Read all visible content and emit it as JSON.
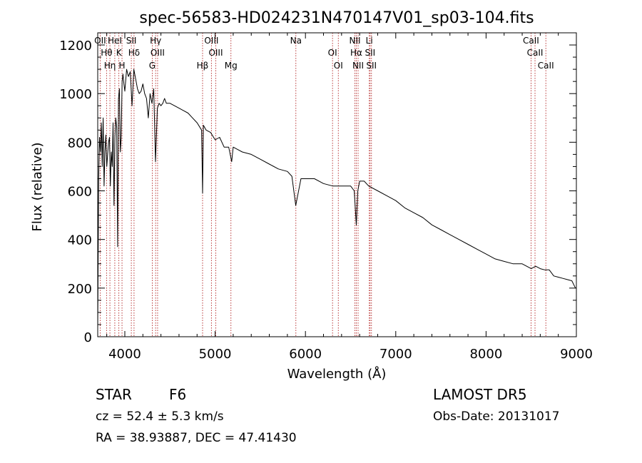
{
  "chart_data": {
    "type": "line",
    "title": "spec-56583-HD024231N470147V01_sp03-104.fits",
    "xlabel": "Wavelength (Å)",
    "ylabel": "Flux (relative)",
    "xlim": [
      3700,
      9000
    ],
    "ylim": [
      0,
      1250
    ],
    "xticks": [
      "4000",
      "5000",
      "6000",
      "7000",
      "8000",
      "9000"
    ],
    "yticks": [
      "0",
      "200",
      "400",
      "600",
      "800",
      "1000",
      "1200"
    ],
    "grid": false,
    "line_color": "#000000",
    "marker_color": "#b22222",
    "series": [
      {
        "x": [
          3700,
          3710,
          3720,
          3730,
          3740,
          3750,
          3760,
          3770,
          3780,
          3790,
          3800,
          3810,
          3820,
          3830,
          3840,
          3850,
          3860,
          3870,
          3880,
          3890,
          3900,
          3910,
          3920,
          3930,
          3940,
          3950,
          3960,
          3970,
          3980,
          3990,
          4000,
          4020,
          4040,
          4060,
          4080,
          4100,
          4120,
          4140,
          4160,
          4180,
          4200,
          4220,
          4240,
          4260,
          4280,
          4300,
          4320,
          4340,
          4360,
          4380,
          4400,
          4420,
          4440,
          4460,
          4480,
          4500,
          4550,
          4600,
          4650,
          4700,
          4750,
          4800,
          4850,
          4861,
          4870,
          4900,
          4950,
          5000,
          5050,
          5100,
          5150,
          5183,
          5200,
          5250,
          5300,
          5400,
          5500,
          5600,
          5700,
          5800,
          5850,
          5893,
          5950,
          6000,
          6100,
          6200,
          6300,
          6400,
          6500,
          6540,
          6563,
          6580,
          6600,
          6650,
          6700,
          6800,
          6900,
          7000,
          7100,
          7200,
          7300,
          7400,
          7500,
          7600,
          7700,
          7800,
          7900,
          8000,
          8100,
          8200,
          8300,
          8400,
          8500,
          8550,
          8600,
          8650,
          8700,
          8750,
          8800,
          8850,
          8900,
          8950,
          8990
        ],
        "y": [
          30,
          650,
          820,
          760,
          880,
          700,
          900,
          620,
          760,
          830,
          700,
          750,
          800,
          820,
          620,
          760,
          700,
          880,
          540,
          820,
          900,
          860,
          370,
          980,
          1020,
          760,
          820,
          1050,
          1080,
          1040,
          1010,
          1100,
          1070,
          1090,
          950,
          1100,
          1060,
          1020,
          1000,
          1010,
          1040,
          1000,
          980,
          900,
          1000,
          960,
          1020,
          720,
          940,
          960,
          950,
          960,
          980,
          960,
          960,
          960,
          950,
          940,
          930,
          920,
          900,
          880,
          850,
          590,
          870,
          850,
          840,
          810,
          820,
          780,
          780,
          720,
          780,
          770,
          760,
          750,
          730,
          710,
          690,
          680,
          660,
          540,
          650,
          650,
          650,
          630,
          620,
          620,
          620,
          600,
          460,
          600,
          640,
          640,
          620,
          600,
          580,
          560,
          530,
          510,
          490,
          460,
          440,
          420,
          400,
          380,
          360,
          340,
          320,
          310,
          300,
          300,
          280,
          290,
          280,
          275,
          275,
          250,
          245,
          240,
          235,
          230,
          200
        ]
      }
    ],
    "lines": [
      {
        "wl": 3727,
        "labels": [
          "OII"
        ]
      },
      {
        "wl": 3798,
        "labels": [
          "Hθ"
        ]
      },
      {
        "wl": 3835,
        "labels": [
          "Hη"
        ]
      },
      {
        "wl": 3889,
        "labels": [
          "HeI"
        ]
      },
      {
        "wl": 3934,
        "labels": [
          "K"
        ]
      },
      {
        "wl": 3969,
        "labels": [
          "H"
        ]
      },
      {
        "wl": 4072,
        "labels": [
          "SII"
        ]
      },
      {
        "wl": 4102,
        "labels": [
          "Hδ"
        ]
      },
      {
        "wl": 4304,
        "labels": [
          "G"
        ]
      },
      {
        "wl": 4341,
        "labels": [
          "Hγ"
        ]
      },
      {
        "wl": 4363,
        "labels": [
          "OIII"
        ]
      },
      {
        "wl": 4861,
        "labels": [
          "Hβ"
        ]
      },
      {
        "wl": 4959,
        "labels": [
          "OIII"
        ]
      },
      {
        "wl": 5007,
        "labels": [
          "OIII"
        ]
      },
      {
        "wl": 5175,
        "labels": [
          "Mg"
        ]
      },
      {
        "wl": 5894,
        "labels": [
          "Na"
        ]
      },
      {
        "wl": 6300,
        "labels": [
          "OI"
        ]
      },
      {
        "wl": 6364,
        "labels": [
          "OI"
        ]
      },
      {
        "wl": 6548,
        "labels": [
          "NII"
        ]
      },
      {
        "wl": 6563,
        "labels": [
          "Hα"
        ]
      },
      {
        "wl": 6583,
        "labels": [
          "NII"
        ]
      },
      {
        "wl": 6707,
        "labels": [
          "Li"
        ]
      },
      {
        "wl": 6716,
        "labels": [
          "SII"
        ]
      },
      {
        "wl": 6731,
        "labels": [
          "SII"
        ]
      },
      {
        "wl": 8498,
        "labels": [
          "CaII"
        ]
      },
      {
        "wl": 8542,
        "labels": [
          "CaII"
        ]
      },
      {
        "wl": 8662,
        "labels": [
          "CaII"
        ]
      }
    ]
  },
  "info": {
    "object_class": "STAR",
    "subclass": "F6",
    "survey": "LAMOST DR5",
    "cz": "cz = 52.4 ± 5.3 km/s",
    "obs_date": "Obs-Date: 20131017",
    "coords": "RA =  38.93887, DEC =  47.41430"
  }
}
